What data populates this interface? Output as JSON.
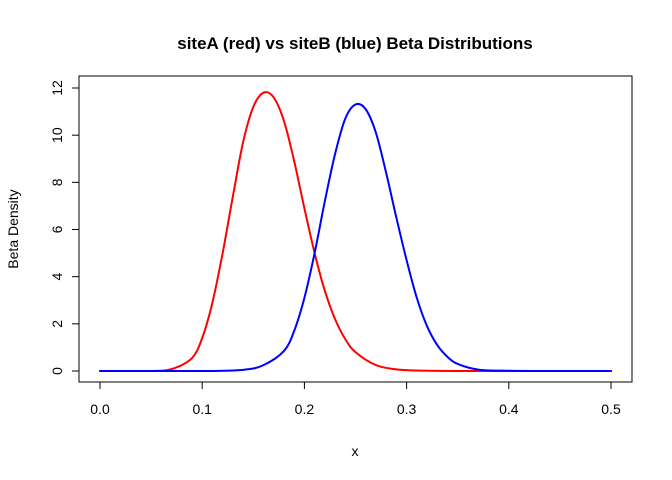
{
  "chart_data": {
    "type": "line",
    "title": "siteA (red) vs siteB (blue) Beta Distributions",
    "xlabel": "x",
    "ylabel": "Beta Density",
    "xlim": [
      0.0,
      0.5
    ],
    "ylim": [
      0,
      12
    ],
    "x_ticks": [
      "0.0",
      "0.1",
      "0.2",
      "0.3",
      "0.4",
      "0.5"
    ],
    "y_ticks": [
      "0",
      "2",
      "4",
      "6",
      "8",
      "10",
      "12"
    ],
    "grid": false,
    "legend": "none",
    "series": [
      {
        "color": "#ff0000",
        "x": [
          0.0,
          0.05,
          0.07,
          0.09,
          0.1,
          0.11,
          0.12,
          0.13,
          0.14,
          0.15,
          0.16,
          0.17,
          0.18,
          0.19,
          0.2,
          0.21,
          0.22,
          0.23,
          0.24,
          0.25,
          0.27,
          0.29,
          0.31,
          0.35,
          0.4,
          0.5
        ],
        "values": [
          0.0,
          0.0,
          0.08,
          0.55,
          1.4,
          2.9,
          5.0,
          7.4,
          9.7,
          11.2,
          11.8,
          11.6,
          10.6,
          8.9,
          6.9,
          5.0,
          3.4,
          2.2,
          1.35,
          0.8,
          0.25,
          0.07,
          0.02,
          0.0,
          0.0,
          0.0
        ]
      },
      {
        "color": "#0000ff",
        "x": [
          0.0,
          0.1,
          0.14,
          0.16,
          0.18,
          0.19,
          0.2,
          0.21,
          0.22,
          0.23,
          0.24,
          0.25,
          0.26,
          0.27,
          0.28,
          0.29,
          0.3,
          0.31,
          0.32,
          0.33,
          0.34,
          0.35,
          0.37,
          0.4,
          0.45,
          0.5
        ],
        "values": [
          0.0,
          0.0,
          0.05,
          0.25,
          0.85,
          1.7,
          3.1,
          5.0,
          7.2,
          9.2,
          10.7,
          11.3,
          11.1,
          10.1,
          8.4,
          6.5,
          4.7,
          3.1,
          1.9,
          1.1,
          0.6,
          0.3,
          0.06,
          0.01,
          0.0,
          0.0
        ]
      }
    ]
  }
}
